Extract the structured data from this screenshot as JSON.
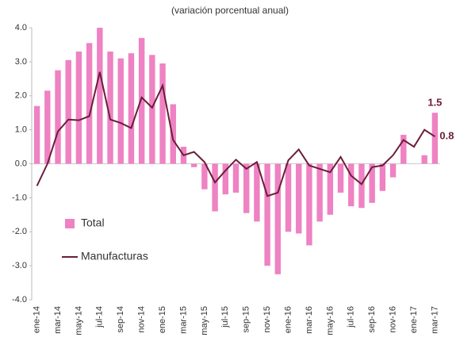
{
  "chart_data": {
    "type": "bar_line",
    "title": "(variación porcentual anual)",
    "categories": [
      "ene-14",
      null,
      "mar-14",
      null,
      "may-14",
      null,
      "jul-14",
      null,
      "sep-14",
      null,
      "nov-14",
      null,
      "ene-15",
      null,
      "mar-15",
      null,
      "may-15",
      null,
      "jul-15",
      null,
      "sep-15",
      null,
      "nov-15",
      null,
      "ene-16",
      null,
      "mar-16",
      null,
      "may-16",
      null,
      "jul-16",
      null,
      "sep-16",
      null,
      "nov-16",
      null,
      "ene-17",
      null,
      "mar-17"
    ],
    "series": [
      {
        "name": "Total",
        "type": "bar",
        "color": "#ee82c3",
        "values": [
          1.7,
          2.15,
          2.75,
          3.05,
          3.3,
          3.55,
          4.0,
          3.3,
          3.1,
          3.25,
          3.7,
          3.2,
          2.95,
          1.75,
          0.5,
          -0.1,
          -0.75,
          -1.4,
          -0.9,
          -0.85,
          -1.45,
          -1.7,
          -3.0,
          -3.25,
          -2.0,
          -2.05,
          -2.4,
          -1.7,
          -1.5,
          -0.85,
          -1.25,
          -1.3,
          -1.15,
          -0.8,
          -0.4,
          0.85,
          0.0,
          0.25,
          1.5
        ],
        "value_labels": [
          null,
          null,
          null,
          null,
          null,
          null,
          null,
          null,
          null,
          null,
          null,
          null,
          null,
          null,
          null,
          null,
          null,
          null,
          null,
          null,
          null,
          null,
          null,
          null,
          null,
          null,
          null,
          null,
          null,
          null,
          null,
          null,
          null,
          null,
          null,
          null,
          null,
          null,
          "1.5"
        ]
      },
      {
        "name": "Manufacturas",
        "type": "line",
        "color": "#6b1d3a",
        "values": [
          -0.65,
          0.0,
          0.95,
          1.3,
          1.28,
          1.4,
          2.7,
          1.3,
          1.2,
          1.05,
          1.95,
          1.65,
          2.3,
          0.7,
          0.25,
          0.35,
          0.05,
          -0.55,
          -0.2,
          0.12,
          -0.15,
          0.05,
          -0.95,
          -0.85,
          0.1,
          0.42,
          -0.05,
          -0.15,
          -0.25,
          0.2,
          -0.35,
          -0.6,
          -0.1,
          -0.05,
          0.25,
          0.7,
          0.5,
          1.0,
          0.8
        ],
        "value_labels": [
          null,
          null,
          null,
          null,
          null,
          null,
          null,
          null,
          null,
          null,
          null,
          null,
          null,
          null,
          null,
          null,
          null,
          null,
          null,
          null,
          null,
          null,
          null,
          null,
          null,
          null,
          null,
          null,
          null,
          null,
          null,
          null,
          null,
          null,
          null,
          null,
          null,
          null,
          "0.8"
        ]
      }
    ],
    "ylim": [
      -4,
      4
    ],
    "yticks": [
      {
        "value": -4,
        "label": "-4.0"
      },
      {
        "value": -3,
        "label": "-3.0"
      },
      {
        "value": -2,
        "label": "-2.0"
      },
      {
        "value": -1,
        "label": "-1.0"
      },
      {
        "value": 0,
        "label": "0.0"
      },
      {
        "value": 1,
        "label": "1.0"
      },
      {
        "value": 2,
        "label": "2.0"
      },
      {
        "value": 3,
        "label": "3.0"
      },
      {
        "value": 4,
        "label": "4.0"
      }
    ],
    "legend": "lower left"
  }
}
